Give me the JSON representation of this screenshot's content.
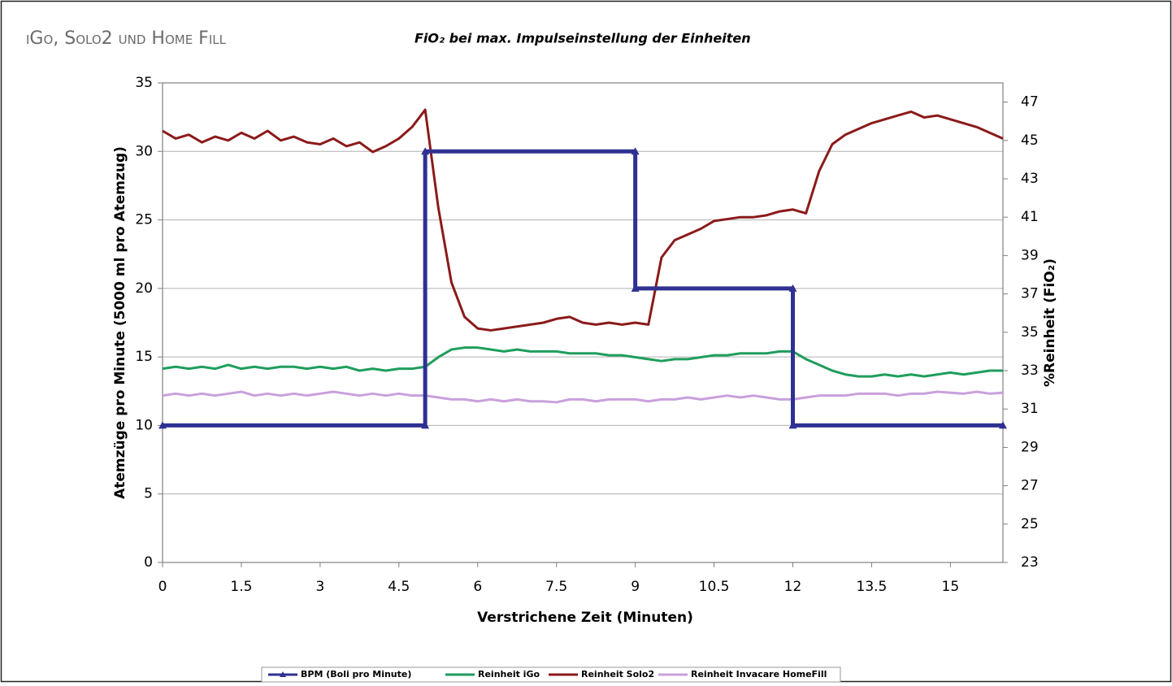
{
  "header": "iGo, Solo2 und Home Fill",
  "chart_data": {
    "type": "line",
    "title": "FiO₂ bei max. Impulseinstellung der Einheiten",
    "x_label": "Verstrichene Zeit (Minuten)",
    "y_label": "Atemzüge pro Minute (5000 ml pro Atemzug)",
    "y2_label": "%Reinheit (FiO₂)",
    "xlim": [
      0,
      16
    ],
    "xticks": [
      0,
      1.5,
      3,
      4.5,
      6,
      7.5,
      9,
      10.5,
      12,
      13.5,
      15
    ],
    "ylim": [
      0,
      35
    ],
    "yticks": [
      0,
      5,
      10,
      15,
      20,
      25,
      30,
      35
    ],
    "y2lim": [
      23,
      48
    ],
    "y2ticks": [
      23,
      25,
      27,
      29,
      31,
      33,
      35,
      37,
      39,
      41,
      43,
      45,
      47
    ],
    "grid": true,
    "legend": "bottom",
    "x": [
      0,
      0.25,
      0.5,
      0.75,
      1,
      1.25,
      1.5,
      1.75,
      2,
      2.25,
      2.5,
      2.75,
      3,
      3.25,
      3.5,
      3.75,
      4,
      4.25,
      4.5,
      4.75,
      5,
      5.25,
      5.5,
      5.75,
      6,
      6.25,
      6.5,
      6.75,
      7,
      7.25,
      7.5,
      7.75,
      8,
      8.25,
      8.5,
      8.75,
      9,
      9.25,
      9.5,
      9.75,
      10,
      10.25,
      10.5,
      10.75,
      11,
      11.25,
      11.5,
      11.75,
      12,
      12.25,
      12.5,
      12.75,
      13,
      13.25,
      13.5,
      13.75,
      14,
      14.25,
      14.5,
      14.75,
      15,
      15.25,
      15.5,
      15.75,
      16
    ],
    "series": [
      {
        "name": "BPM (Boli pro Minute)",
        "color": "#2e3192",
        "marker": "triangle",
        "x": [
          0,
          5,
          5,
          9,
          9,
          12,
          12,
          16
        ],
        "values": [
          10,
          10,
          30,
          30,
          20,
          20,
          10,
          10
        ]
      },
      {
        "name": "Reinheit iGo",
        "color": "#1f9e5c",
        "axis": "y2",
        "values": [
          33.1,
          33.2,
          33.1,
          33.2,
          33.1,
          33.3,
          33.1,
          33.2,
          33.1,
          33.2,
          33.2,
          33.1,
          33.2,
          33.1,
          33.2,
          33.0,
          33.1,
          33.0,
          33.1,
          33.1,
          33.2,
          33.7,
          34.1,
          34.2,
          34.2,
          34.1,
          34.0,
          34.1,
          34.0,
          34.0,
          34.0,
          33.9,
          33.9,
          33.9,
          33.8,
          33.8,
          33.7,
          33.6,
          33.5,
          33.6,
          33.6,
          33.7,
          33.8,
          33.8,
          33.9,
          33.9,
          33.9,
          34.0,
          34.0,
          33.6,
          33.3,
          33.0,
          32.8,
          32.7,
          32.7,
          32.8,
          32.7,
          32.8,
          32.7,
          32.8,
          32.9,
          32.8,
          32.9,
          33.0,
          33.0
        ]
      },
      {
        "name": "Reinheit Solo2",
        "color": "#8b1a1a",
        "axis": "y2",
        "values": [
          45.5,
          45.1,
          45.3,
          44.9,
          45.2,
          45.0,
          45.4,
          45.1,
          45.5,
          45.0,
          45.2,
          44.9,
          44.8,
          45.1,
          44.7,
          44.9,
          44.4,
          44.7,
          45.1,
          45.7,
          46.6,
          41.5,
          37.6,
          35.8,
          35.2,
          35.1,
          35.2,
          35.3,
          35.4,
          35.5,
          35.7,
          35.8,
          35.5,
          35.4,
          35.5,
          35.4,
          35.5,
          35.4,
          38.9,
          39.8,
          40.1,
          40.4,
          40.8,
          40.9,
          41.0,
          41.0,
          41.1,
          41.3,
          41.4,
          41.2,
          43.4,
          44.8,
          45.3,
          45.6,
          45.9,
          46.1,
          46.3,
          46.5,
          46.2,
          46.3,
          46.1,
          45.9,
          45.7,
          45.4,
          45.1
        ]
      },
      {
        "name": "Reinheit Invacare HomeFill",
        "color": "#c9a0dc",
        "axis": "y2",
        "values": [
          31.7,
          31.8,
          31.7,
          31.8,
          31.7,
          31.8,
          31.9,
          31.7,
          31.8,
          31.7,
          31.8,
          31.7,
          31.8,
          31.9,
          31.8,
          31.7,
          31.8,
          31.7,
          31.8,
          31.7,
          31.7,
          31.6,
          31.5,
          31.5,
          31.4,
          31.5,
          31.4,
          31.5,
          31.4,
          31.4,
          31.35,
          31.5,
          31.5,
          31.4,
          31.5,
          31.5,
          31.5,
          31.4,
          31.5,
          31.5,
          31.6,
          31.5,
          31.6,
          31.7,
          31.6,
          31.7,
          31.6,
          31.5,
          31.5,
          31.6,
          31.7,
          31.7,
          31.7,
          31.8,
          31.8,
          31.8,
          31.7,
          31.8,
          31.8,
          31.9,
          31.85,
          31.8,
          31.9,
          31.8,
          31.85
        ]
      }
    ]
  }
}
